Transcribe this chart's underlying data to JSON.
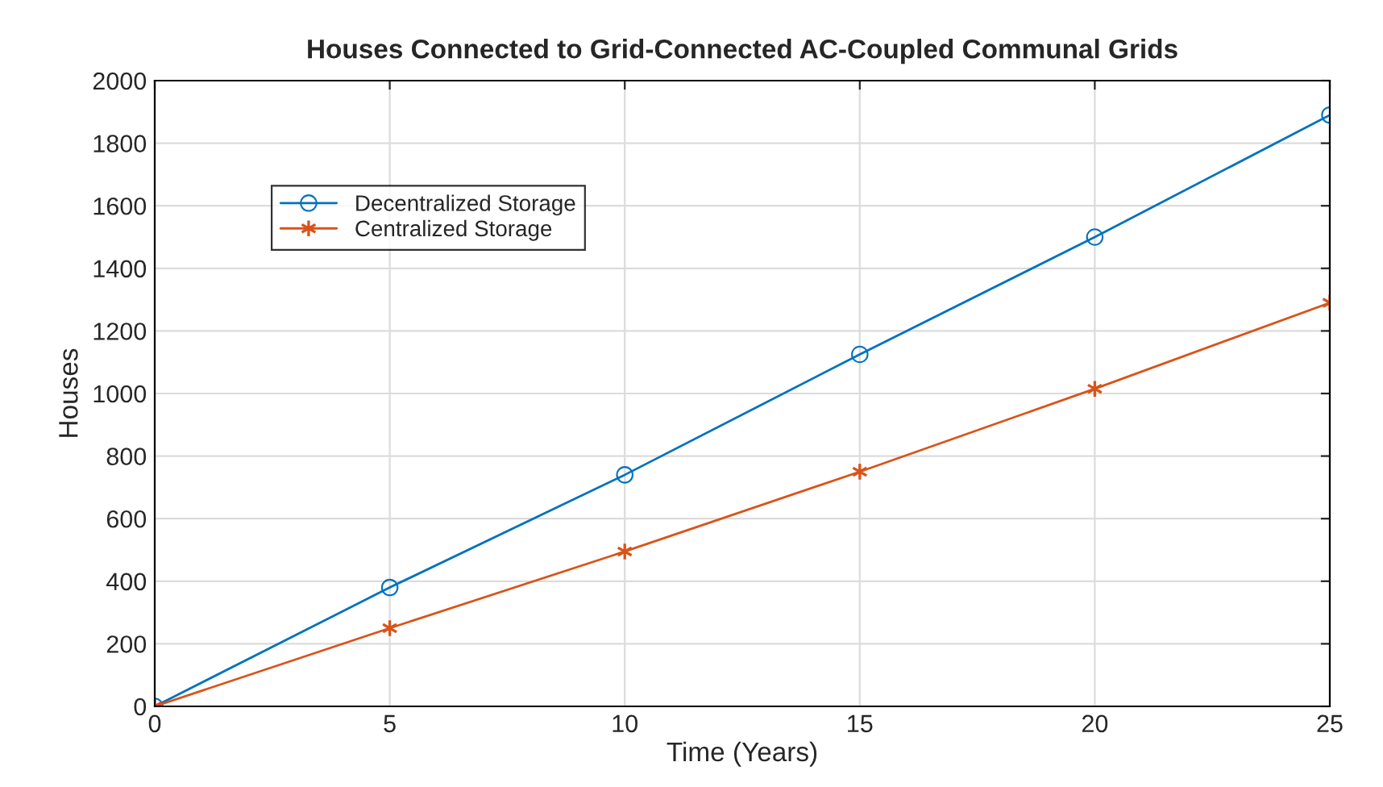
{
  "chart_data": {
    "type": "line",
    "title": "Houses Connected to Grid-Connected AC-Coupled Communal Grids",
    "xlabel": "Time (Years)",
    "ylabel": "Houses",
    "x": [
      0,
      5,
      10,
      15,
      20,
      25
    ],
    "series": [
      {
        "name": "Decentralized Storage",
        "color": "#0072bd",
        "marker": "circle",
        "values": [
          0,
          380,
          740,
          1125,
          1500,
          1890
        ]
      },
      {
        "name": "Centralized Storage",
        "color": "#d95319",
        "marker": "cross",
        "values": [
          0,
          250,
          495,
          750,
          1015,
          1290
        ]
      }
    ],
    "xlim": [
      0,
      25
    ],
    "xticks": [
      0,
      5,
      10,
      15,
      20,
      25
    ],
    "ylim": [
      0,
      2000
    ],
    "yticks": [
      0,
      200,
      400,
      600,
      800,
      1000,
      1200,
      1400,
      1600,
      1800,
      2000
    ],
    "grid": true,
    "legend": "top left",
    "line_style": "solid"
  }
}
